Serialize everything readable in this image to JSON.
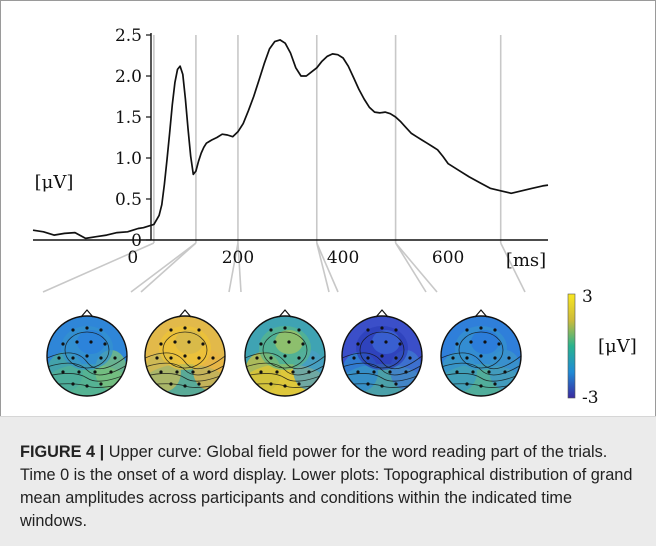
{
  "caption": {
    "label": "FIGURE 4 |",
    "text": " Upper curve: Global field power for the word reading part of the trials. Time 0 is the onset of a word display. Lower plots: Topographical distribution of grand mean amplitudes across participants and conditions within the indicated time windows."
  },
  "colorbar": {
    "max_label": "3",
    "min_label": "-3",
    "unit": "[μV]"
  },
  "colors": {
    "curve": "#111111",
    "window_lines": "#c8c8c8",
    "caption_bg": "#ebebeb"
  },
  "chart_data": {
    "type": "line",
    "title": "",
    "xlabel": "[ms]",
    "ylabel": "[μV]",
    "xlim": [
      -190,
      790
    ],
    "ylim": [
      0,
      2.5
    ],
    "x_ticks": [
      0,
      200,
      400,
      600
    ],
    "x_tick_labels": [
      "0",
      "200",
      "400",
      "600"
    ],
    "y_ticks": [
      0,
      0.5,
      1.0,
      1.5,
      2.0,
      2.5
    ],
    "y_tick_labels": [
      "0",
      "0.5",
      "1.0",
      "1.5",
      "2.0",
      "2.5"
    ],
    "time_windows": [
      40,
      120,
      200,
      350,
      500,
      700
    ],
    "series": [
      {
        "x": [
          -190,
          -170,
          -150,
          -130,
          -110,
          -90,
          -70,
          -50,
          -30,
          -10,
          0,
          10,
          20,
          30,
          40,
          50,
          55,
          60,
          65,
          70,
          75,
          80,
          85,
          90,
          95,
          100,
          105,
          110,
          115,
          120,
          125,
          130,
          135,
          140,
          145,
          150,
          160,
          170,
          180,
          190,
          200,
          210,
          220,
          230,
          240,
          250,
          260,
          270,
          280,
          290,
          300,
          310,
          320,
          330,
          340,
          350,
          360,
          370,
          380,
          390,
          400,
          410,
          420,
          430,
          440,
          450,
          460,
          470,
          480,
          490,
          500,
          510,
          520,
          530,
          540,
          550,
          560,
          570,
          580,
          590,
          600,
          620,
          640,
          660,
          680,
          700,
          720,
          740,
          760,
          780,
          790
        ],
        "values": [
          0.12,
          0.1,
          0.06,
          0.08,
          0.09,
          0.02,
          0.04,
          0.06,
          0.09,
          0.1,
          0.12,
          0.14,
          0.15,
          0.17,
          0.19,
          0.3,
          0.43,
          0.68,
          0.98,
          1.3,
          1.65,
          1.92,
          2.08,
          2.12,
          2.02,
          1.72,
          1.36,
          1.02,
          0.8,
          0.84,
          0.96,
          1.06,
          1.13,
          1.18,
          1.2,
          1.22,
          1.25,
          1.29,
          1.28,
          1.26,
          1.32,
          1.42,
          1.58,
          1.75,
          1.95,
          2.15,
          2.33,
          2.42,
          2.44,
          2.4,
          2.28,
          2.1,
          2.0,
          2.0,
          2.05,
          2.1,
          2.18,
          2.24,
          2.27,
          2.26,
          2.22,
          2.12,
          1.98,
          1.84,
          1.72,
          1.62,
          1.56,
          1.55,
          1.56,
          1.54,
          1.5,
          1.44,
          1.37,
          1.3,
          1.26,
          1.22,
          1.18,
          1.14,
          1.1,
          1.02,
          0.93,
          0.85,
          0.77,
          0.7,
          0.63,
          0.6,
          0.57,
          0.6,
          0.63,
          0.66,
          0.67
        ]
      }
    ]
  },
  "topomaps": [
    {
      "window": "40-120 ms",
      "colors": [
        "#2f86d8",
        "#3393cf",
        "#2a7fdc",
        "#4bab9c",
        "#5ab88c",
        "#7cc07a"
      ]
    },
    {
      "window": "120-200 ms",
      "colors": [
        "#e2b94a",
        "#f0c534",
        "#d5b84e",
        "#c6ba5a",
        "#4aa8a0",
        "#e8b545"
      ]
    },
    {
      "window": "200-350 ms",
      "colors": [
        "#3fa3b3",
        "#5ab789",
        "#9cc363",
        "#cfc23e",
        "#f0cb2d",
        "#4a9ec6"
      ]
    },
    {
      "window": "350-500 ms",
      "colors": [
        "#3b4fc9",
        "#2b3fb8",
        "#3c66d4",
        "#2f8ad2",
        "#4ea9a5",
        "#3f7bd0"
      ]
    },
    {
      "window": "500-700 ms",
      "colors": [
        "#2f7fda",
        "#3593cf",
        "#2a79dc",
        "#3b9bc2",
        "#55b394",
        "#3e95c8"
      ]
    }
  ]
}
